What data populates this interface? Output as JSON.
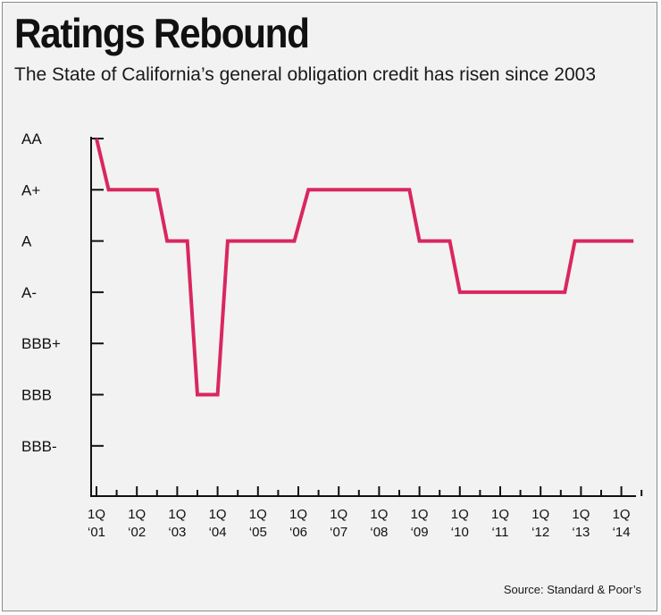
{
  "title": "Ratings Rebound",
  "subtitle": "The State of California’s general obligation credit has risen since 2003",
  "source": "Source: Standard & Poor’s",
  "colors": {
    "line": "#d9275f",
    "axis": "#111111",
    "background": "#f2f2f2"
  },
  "chart_data": {
    "type": "line",
    "y_levels": [
      "AA",
      "A+",
      "A",
      "A-",
      "BBB+",
      "BBB",
      "BBB-"
    ],
    "x_ticks": [
      {
        "top": "1Q",
        "bottom": "‘01"
      },
      {
        "top": "1Q",
        "bottom": "‘02"
      },
      {
        "top": "1Q",
        "bottom": "‘03"
      },
      {
        "top": "1Q",
        "bottom": "‘04"
      },
      {
        "top": "1Q",
        "bottom": "‘05"
      },
      {
        "top": "1Q",
        "bottom": "‘06"
      },
      {
        "top": "1Q",
        "bottom": "‘07"
      },
      {
        "top": "1Q",
        "bottom": "‘08"
      },
      {
        "top": "1Q",
        "bottom": "‘09"
      },
      {
        "top": "1Q",
        "bottom": "‘10"
      },
      {
        "top": "1Q",
        "bottom": "‘11"
      },
      {
        "top": "1Q",
        "bottom": "‘12"
      },
      {
        "top": "1Q",
        "bottom": "‘13"
      },
      {
        "top": "1Q",
        "bottom": "‘14"
      }
    ],
    "x_range": [
      2001.0,
      2014.3
    ],
    "series": [
      {
        "points": [
          {
            "x": 2001.0,
            "y": "AA"
          },
          {
            "x": 2001.3,
            "y": "A+"
          },
          {
            "x": 2002.5,
            "y": "A+"
          },
          {
            "x": 2002.75,
            "y": "A"
          },
          {
            "x": 2003.25,
            "y": "A"
          },
          {
            "x": 2003.5,
            "y": "BBB"
          },
          {
            "x": 2004.0,
            "y": "BBB"
          },
          {
            "x": 2004.25,
            "y": "A"
          },
          {
            "x": 2005.9,
            "y": "A"
          },
          {
            "x": 2006.25,
            "y": "A+"
          },
          {
            "x": 2008.75,
            "y": "A+"
          },
          {
            "x": 2009.0,
            "y": "A"
          },
          {
            "x": 2009.75,
            "y": "A"
          },
          {
            "x": 2010.0,
            "y": "A-"
          },
          {
            "x": 2012.6,
            "y": "A-"
          },
          {
            "x": 2012.85,
            "y": "A"
          },
          {
            "x": 2014.3,
            "y": "A"
          }
        ]
      }
    ],
    "grid": false,
    "legend": "none"
  }
}
